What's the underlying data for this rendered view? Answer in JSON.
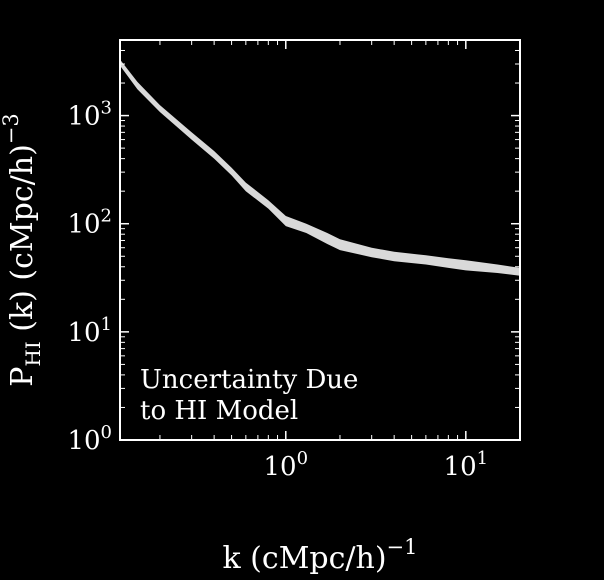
{
  "chart_data": {
    "type": "area",
    "xlabel": "k (cMpc/h)",
    "xlabel_sup": "−1",
    "ylabel_main": "P",
    "ylabel_sub": "HI",
    "ylabel_rest": " (k) (cMpc/h)",
    "ylabel_sup": "−3",
    "x_scale": "log",
    "y_scale": "log",
    "xlim": [
      0.12,
      20
    ],
    "ylim": [
      1,
      5000
    ],
    "x_ticks": [
      {
        "value": 1,
        "base": "10",
        "exp": "0"
      },
      {
        "value": 10,
        "base": "10",
        "exp": "1"
      }
    ],
    "y_ticks": [
      {
        "value": 1,
        "base": "10",
        "exp": "0"
      },
      {
        "value": 10,
        "base": "10",
        "exp": "1"
      },
      {
        "value": 100,
        "base": "10",
        "exp": "2"
      },
      {
        "value": 1000,
        "base": "10",
        "exp": "3"
      }
    ],
    "annotation": [
      "Uncertainty Due",
      "to HI Model"
    ],
    "grid": false,
    "band_color": "#d9d9d9",
    "series": [
      {
        "x": [
          0.12,
          0.15,
          0.2,
          0.3,
          0.4,
          0.5,
          0.6,
          0.8,
          1.0,
          1.3,
          1.7,
          2.0,
          3.0,
          4.0,
          6.0,
          8.0,
          10.0,
          15.0,
          20.0
        ],
        "lower": [
          2900,
          1750,
          1080,
          600,
          400,
          280,
          200,
          138,
          95,
          82,
          65,
          57,
          49,
          45,
          42,
          39,
          37,
          35,
          33
        ],
        "upper": [
          3300,
          2050,
          1250,
          700,
          470,
          330,
          240,
          165,
          118,
          100,
          82,
          72,
          60,
          55,
          51,
          48,
          46,
          42,
          39
        ]
      }
    ]
  }
}
